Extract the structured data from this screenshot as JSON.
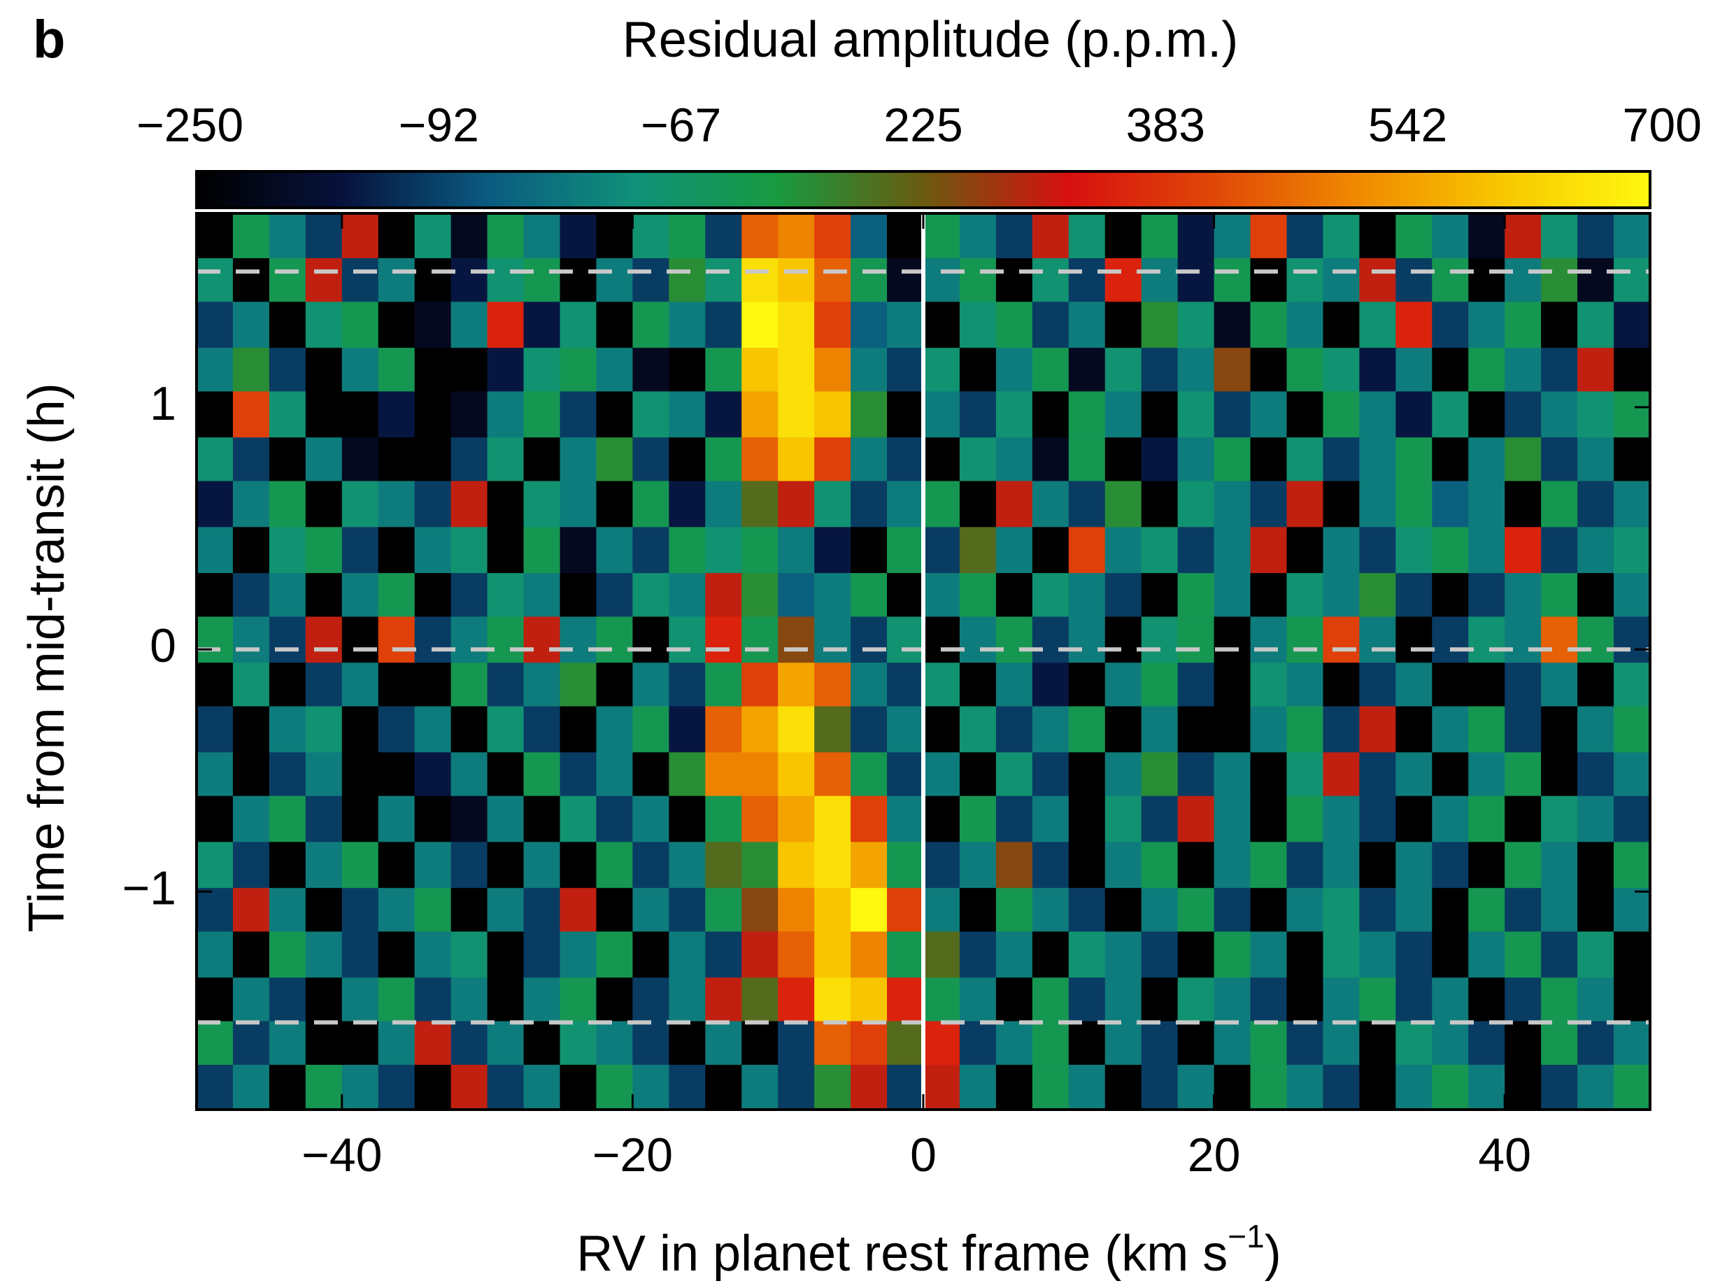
{
  "panel_label": "b",
  "chart_data": {
    "type": "heatmap",
    "colorbar_title": "Residual amplitude (p.p.m.)",
    "colorbar_tick_labels": [
      "−250",
      "−92",
      "−67",
      "225",
      "383",
      "542",
      "700"
    ],
    "clim": [
      -250,
      700
    ],
    "colormap": [
      "#000000",
      "#07123c",
      "#0a5a80",
      "#10907a",
      "#189a40",
      "#6a5a10",
      "#d81010",
      "#e04808",
      "#f08a00",
      "#f8c800",
      "#fff810"
    ],
    "ylabel": "Time from mid-transit (h)",
    "xlabel": {
      "text": "RV in planet rest frame (km s",
      "sup": "−1",
      "end": ")"
    },
    "xlim": [
      -50,
      50
    ],
    "ylim": [
      -1.9,
      1.8
    ],
    "xticks": [
      {
        "value": -40,
        "label": "−40"
      },
      {
        "value": -20,
        "label": "−20"
      },
      0,
      20,
      40
    ],
    "yticks": [
      {
        "value": -1,
        "label": "−1"
      },
      0,
      1
    ],
    "vline": 0,
    "vline_color": "#ffffff",
    "hlines": [
      1.56,
      0,
      -1.54
    ],
    "hline_color": "#c8c8c8",
    "x": [
      -48.75,
      -46.25,
      -43.75,
      -41.25,
      -38.75,
      -36.25,
      -33.75,
      -31.25,
      -28.75,
      -26.25,
      -23.75,
      -21.25,
      -18.75,
      -16.25,
      -13.75,
      -11.25,
      -8.75,
      -6.25,
      -3.75,
      -1.25,
      1.25,
      3.75,
      6.25,
      8.75,
      11.25,
      13.75,
      16.25,
      18.75,
      21.25,
      23.75,
      26.25,
      28.75,
      31.25,
      33.75,
      36.25,
      38.75,
      41.25,
      43.75,
      46.25,
      48.75
    ],
    "y": [
      1.71,
      1.52,
      1.34,
      1.15,
      0.97,
      0.78,
      0.6,
      0.41,
      0.22,
      0.04,
      -0.15,
      -0.33,
      -0.52,
      -0.7,
      -0.89,
      -1.08,
      -1.26,
      -1.45,
      -1.63,
      -1.81
    ],
    "z": [
      [
        -250,
        100,
        0,
        -100,
        300,
        -250,
        50,
        -200,
        100,
        0,
        -150,
        -250,
        50,
        100,
        -100,
        450,
        500,
        400,
        -50,
        -250,
        100,
        0,
        -100,
        300,
        50,
        -250,
        100,
        -150,
        0,
        400,
        -100,
        50,
        -250,
        100,
        0,
        -200,
        300,
        50,
        -100,
        0
      ],
      [
        50,
        -250,
        100,
        300,
        -100,
        0,
        -250,
        -150,
        50,
        100,
        -250,
        0,
        -100,
        150,
        50,
        650,
        600,
        450,
        100,
        -200,
        0,
        100,
        -250,
        50,
        -100,
        350,
        0,
        -150,
        100,
        -250,
        50,
        0,
        300,
        -100,
        100,
        -250,
        0,
        150,
        -200,
        50
      ],
      [
        -100,
        0,
        -250,
        50,
        100,
        -250,
        -200,
        0,
        350,
        -150,
        50,
        -250,
        100,
        0,
        -100,
        700,
        650,
        400,
        -50,
        0,
        -250,
        50,
        100,
        -100,
        0,
        -250,
        150,
        50,
        -200,
        100,
        0,
        -250,
        50,
        350,
        -100,
        0,
        100,
        -250,
        50,
        -150
      ],
      [
        0,
        150,
        -100,
        -250,
        0,
        100,
        -250,
        -250,
        -150,
        50,
        100,
        0,
        -200,
        -250,
        100,
        600,
        650,
        500,
        0,
        -100,
        50,
        -250,
        0,
        100,
        -200,
        50,
        -100,
        0,
        250,
        -250,
        100,
        50,
        -150,
        0,
        -250,
        100,
        0,
        -100,
        300,
        -250
      ],
      [
        -250,
        400,
        50,
        -250,
        -250,
        -150,
        -250,
        -200,
        0,
        100,
        -100,
        -250,
        50,
        0,
        -150,
        550,
        650,
        600,
        150,
        -250,
        0,
        -100,
        50,
        -250,
        100,
        0,
        -250,
        50,
        -100,
        0,
        -250,
        100,
        0,
        -150,
        50,
        -250,
        -100,
        0,
        50,
        100
      ],
      [
        50,
        -100,
        -250,
        0,
        -200,
        -250,
        -250,
        -100,
        50,
        -250,
        0,
        150,
        -100,
        -250,
        100,
        450,
        600,
        400,
        0,
        -100,
        -250,
        50,
        0,
        -200,
        100,
        -250,
        -150,
        0,
        100,
        -250,
        50,
        -100,
        0,
        100,
        -250,
        0,
        150,
        -100,
        0,
        -250
      ],
      [
        -150,
        0,
        100,
        -250,
        50,
        0,
        -100,
        300,
        -250,
        50,
        0,
        -250,
        100,
        -150,
        0,
        200,
        300,
        50,
        -100,
        0,
        100,
        -250,
        300,
        0,
        -100,
        150,
        -250,
        50,
        0,
        -100,
        300,
        -250,
        0,
        100,
        -50,
        0,
        -250,
        100,
        -100,
        0
      ],
      [
        0,
        -250,
        50,
        100,
        -100,
        -250,
        0,
        50,
        -250,
        100,
        -200,
        0,
        -100,
        100,
        50,
        100,
        0,
        -150,
        -250,
        100,
        -100,
        200,
        0,
        -250,
        400,
        0,
        50,
        -100,
        0,
        300,
        -250,
        0,
        -100,
        50,
        100,
        0,
        350,
        -100,
        0,
        50
      ],
      [
        -250,
        -100,
        0,
        -250,
        0,
        100,
        -250,
        -100,
        50,
        0,
        -250,
        -100,
        50,
        0,
        300,
        150,
        -50,
        0,
        100,
        -250,
        0,
        100,
        -250,
        50,
        0,
        -100,
        -250,
        100,
        0,
        -250,
        50,
        0,
        150,
        -100,
        -250,
        -100,
        0,
        100,
        -250,
        0
      ],
      [
        100,
        0,
        -100,
        300,
        -250,
        400,
        -100,
        0,
        100,
        300,
        0,
        100,
        -250,
        50,
        350,
        100,
        250,
        0,
        -100,
        50,
        -250,
        0,
        100,
        -100,
        0,
        -250,
        50,
        100,
        -250,
        0,
        100,
        400,
        0,
        -250,
        -100,
        50,
        0,
        450,
        100,
        -100
      ],
      [
        -250,
        50,
        -250,
        -100,
        0,
        -250,
        -250,
        100,
        -100,
        0,
        150,
        -250,
        0,
        -100,
        100,
        400,
        550,
        450,
        0,
        -100,
        50,
        -250,
        0,
        -150,
        -250,
        0,
        100,
        -100,
        -250,
        50,
        0,
        -250,
        -100,
        0,
        -250,
        -250,
        -100,
        0,
        -250,
        50
      ],
      [
        -100,
        -250,
        0,
        50,
        -250,
        -100,
        0,
        -250,
        50,
        -100,
        -250,
        0,
        100,
        -150,
        450,
        550,
        650,
        200,
        -100,
        0,
        -250,
        50,
        -100,
        0,
        100,
        -250,
        0,
        -250,
        -250,
        0,
        100,
        -100,
        300,
        -250,
        0,
        100,
        -100,
        -250,
        0,
        100
      ],
      [
        0,
        -250,
        -100,
        0,
        -250,
        -250,
        -150,
        0,
        -250,
        100,
        -100,
        0,
        -250,
        150,
        500,
        500,
        600,
        450,
        100,
        -100,
        0,
        -250,
        50,
        -100,
        -250,
        0,
        150,
        -100,
        0,
        -250,
        50,
        300,
        -100,
        0,
        -250,
        0,
        100,
        -250,
        -100,
        0
      ],
      [
        -250,
        0,
        100,
        -100,
        -250,
        0,
        -250,
        -200,
        0,
        -250,
        50,
        -100,
        0,
        -250,
        100,
        450,
        550,
        650,
        400,
        0,
        -250,
        100,
        -100,
        0,
        -250,
        50,
        -100,
        300,
        0,
        -250,
        100,
        0,
        -100,
        -250,
        0,
        100,
        -250,
        50,
        0,
        -100
      ],
      [
        50,
        -100,
        -250,
        0,
        100,
        -250,
        0,
        -100,
        -250,
        0,
        -250,
        100,
        -100,
        0,
        200,
        150,
        600,
        650,
        550,
        100,
        -100,
        0,
        250,
        -100,
        -250,
        0,
        100,
        -250,
        0,
        100,
        -100,
        0,
        -250,
        0,
        -100,
        -250,
        100,
        0,
        -250,
        100
      ],
      [
        -100,
        300,
        0,
        -250,
        -100,
        0,
        100,
        -250,
        0,
        -100,
        300,
        -250,
        0,
        -100,
        100,
        250,
        500,
        600,
        700,
        400,
        0,
        -250,
        100,
        0,
        -100,
        -250,
        0,
        100,
        -100,
        -250,
        0,
        50,
        -100,
        0,
        -250,
        100,
        -100,
        0,
        -250,
        0
      ],
      [
        0,
        -250,
        100,
        0,
        -100,
        -250,
        0,
        50,
        -250,
        -100,
        0,
        100,
        -250,
        0,
        -100,
        300,
        450,
        600,
        500,
        100,
        200,
        -100,
        0,
        -250,
        50,
        0,
        -100,
        -250,
        100,
        0,
        -250,
        50,
        0,
        -100,
        -250,
        0,
        100,
        -100,
        50,
        -250
      ],
      [
        -250,
        0,
        -100,
        -250,
        0,
        100,
        -100,
        0,
        -250,
        0,
        100,
        -250,
        -100,
        0,
        300,
        200,
        350,
        650,
        600,
        350,
        100,
        0,
        -250,
        100,
        -100,
        0,
        -250,
        50,
        0,
        -100,
        -250,
        0,
        100,
        -100,
        0,
        -250,
        -100,
        100,
        0,
        -250
      ],
      [
        100,
        -100,
        0,
        -250,
        -250,
        0,
        300,
        -100,
        0,
        -250,
        50,
        0,
        -100,
        -250,
        0,
        -250,
        -100,
        450,
        400,
        200,
        350,
        -100,
        0,
        100,
        -250,
        0,
        -100,
        -250,
        0,
        100,
        -100,
        0,
        -250,
        50,
        0,
        -100,
        -250,
        100,
        -100,
        0
      ],
      [
        -100,
        0,
        -250,
        100,
        0,
        -100,
        -250,
        300,
        -100,
        0,
        -250,
        100,
        0,
        -100,
        -250,
        0,
        -100,
        150,
        300,
        -100,
        300,
        0,
        -250,
        100,
        0,
        -250,
        -100,
        0,
        -250,
        100,
        0,
        -100,
        -250,
        0,
        100,
        0,
        -250,
        -100,
        0,
        100
      ]
    ]
  }
}
